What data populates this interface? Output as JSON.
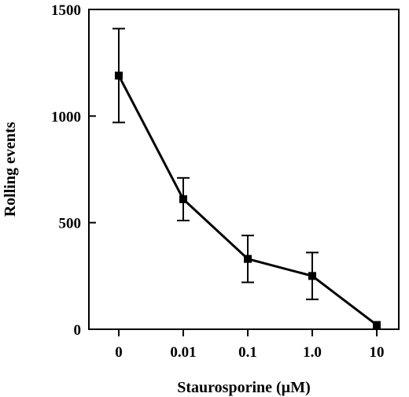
{
  "chart_data": {
    "type": "line",
    "categories": [
      "0",
      "0.01",
      "0.1",
      "1.0",
      "10"
    ],
    "values": [
      1190,
      610,
      330,
      250,
      20
    ],
    "error": [
      220,
      100,
      110,
      110,
      0
    ],
    "xlabel": "Staurosporine (µM)",
    "ylabel": "Rolling events",
    "ylim": [
      0,
      1500
    ],
    "yticks": [
      0,
      500,
      1000,
      1500
    ],
    "marker": "square",
    "grid": false,
    "colors": {
      "line": "#000000",
      "marker": "#000000",
      "frame": "#000000"
    }
  }
}
